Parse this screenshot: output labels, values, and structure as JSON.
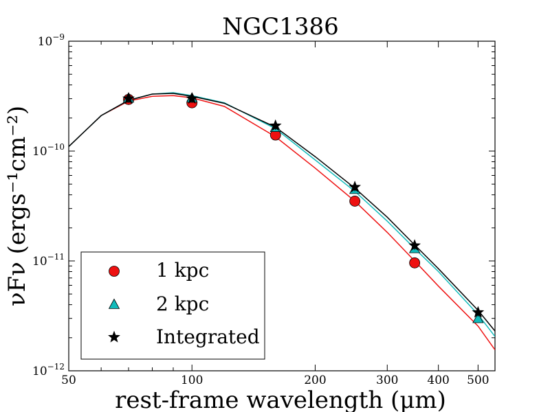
{
  "chart_data": {
    "type": "scatter",
    "title": "NGC1386",
    "xlabel": "rest-frame wavelength (μm)",
    "ylabel": "νFν (ergs⁻¹cm⁻²)",
    "xscale": "log",
    "yscale": "log",
    "xlim": [
      50,
      550
    ],
    "ylim": [
      1e-12,
      1e-09
    ],
    "x_ticks": [
      {
        "value": 50,
        "label": "50"
      },
      {
        "value": 100,
        "label": "100"
      },
      {
        "value": 200,
        "label": "200"
      },
      {
        "value": 300,
        "label": "300"
      },
      {
        "value": 400,
        "label": "400"
      },
      {
        "value": 500,
        "label": "500"
      }
    ],
    "y_ticks": [
      {
        "value": 1e-12,
        "base": "10",
        "exp": "−12"
      },
      {
        "value": 1e-11,
        "base": "10",
        "exp": "−11"
      },
      {
        "value": 1e-10,
        "base": "10",
        "exp": "−10"
      },
      {
        "value": 1e-09,
        "base": "10",
        "exp": "−9"
      }
    ],
    "legend_position": "bottom-left",
    "series": [
      {
        "name": "1 kpc",
        "marker": "circle",
        "color": "#ee1111",
        "x": [
          70,
          100,
          160,
          250,
          350
        ],
        "y": [
          2.95e-10,
          2.75e-10,
          1.4e-10,
          3.5e-11,
          9.6e-12
        ]
      },
      {
        "name": "2 kpc",
        "marker": "triangle",
        "color": "#11bbbb",
        "x": [
          70,
          100,
          160,
          250,
          350,
          500
        ],
        "y": [
          3.05e-10,
          3.05e-10,
          1.65e-10,
          4.5e-11,
          1.3e-11,
          3e-12
        ]
      },
      {
        "name": "Integrated",
        "marker": "star",
        "color": "#000000",
        "x": [
          70,
          100,
          160,
          250,
          350,
          500
        ],
        "y": [
          3e-10,
          3e-10,
          1.7e-10,
          4.7e-11,
          1.38e-11,
          3.4e-12
        ]
      }
    ],
    "model_curves": [
      {
        "name": "1 kpc model",
        "color": "#ee1111",
        "x": [
          50,
          60,
          70,
          80,
          90,
          100,
          120,
          160,
          200,
          250,
          300,
          350,
          400,
          500,
          550
        ],
        "y": [
          1.1e-10,
          2.1e-10,
          2.85e-10,
          3.15e-10,
          3.2e-10,
          3.05e-10,
          2.55e-10,
          1.35e-10,
          7e-11,
          3.5e-11,
          1.82e-11,
          1e-11,
          5.9e-12,
          2.55e-12,
          1.55e-12
        ]
      },
      {
        "name": "2 kpc model",
        "color": "#11bbbb",
        "x": [
          50,
          60,
          70,
          80,
          90,
          100,
          120,
          160,
          200,
          250,
          300,
          350,
          400,
          500,
          550
        ],
        "y": [
          1.1e-10,
          2.1e-10,
          2.9e-10,
          3.3e-10,
          3.4e-10,
          3.2e-10,
          2.75e-10,
          1.6e-10,
          8.3e-11,
          4.3e-11,
          2.3e-11,
          1.3e-11,
          8e-12,
          3.25e-12,
          2.05e-12
        ]
      },
      {
        "name": "Integrated model",
        "color": "#000000",
        "x": [
          50,
          60,
          70,
          80,
          90,
          100,
          120,
          160,
          200,
          250,
          300,
          350,
          400,
          500,
          550
        ],
        "y": [
          1.1e-10,
          2.1e-10,
          2.9e-10,
          3.3e-10,
          3.35e-10,
          3.15e-10,
          2.72e-10,
          1.65e-10,
          8.9e-11,
          4.6e-11,
          2.5e-11,
          1.4e-11,
          8.5e-12,
          3.55e-12,
          2.3e-12
        ]
      }
    ]
  }
}
